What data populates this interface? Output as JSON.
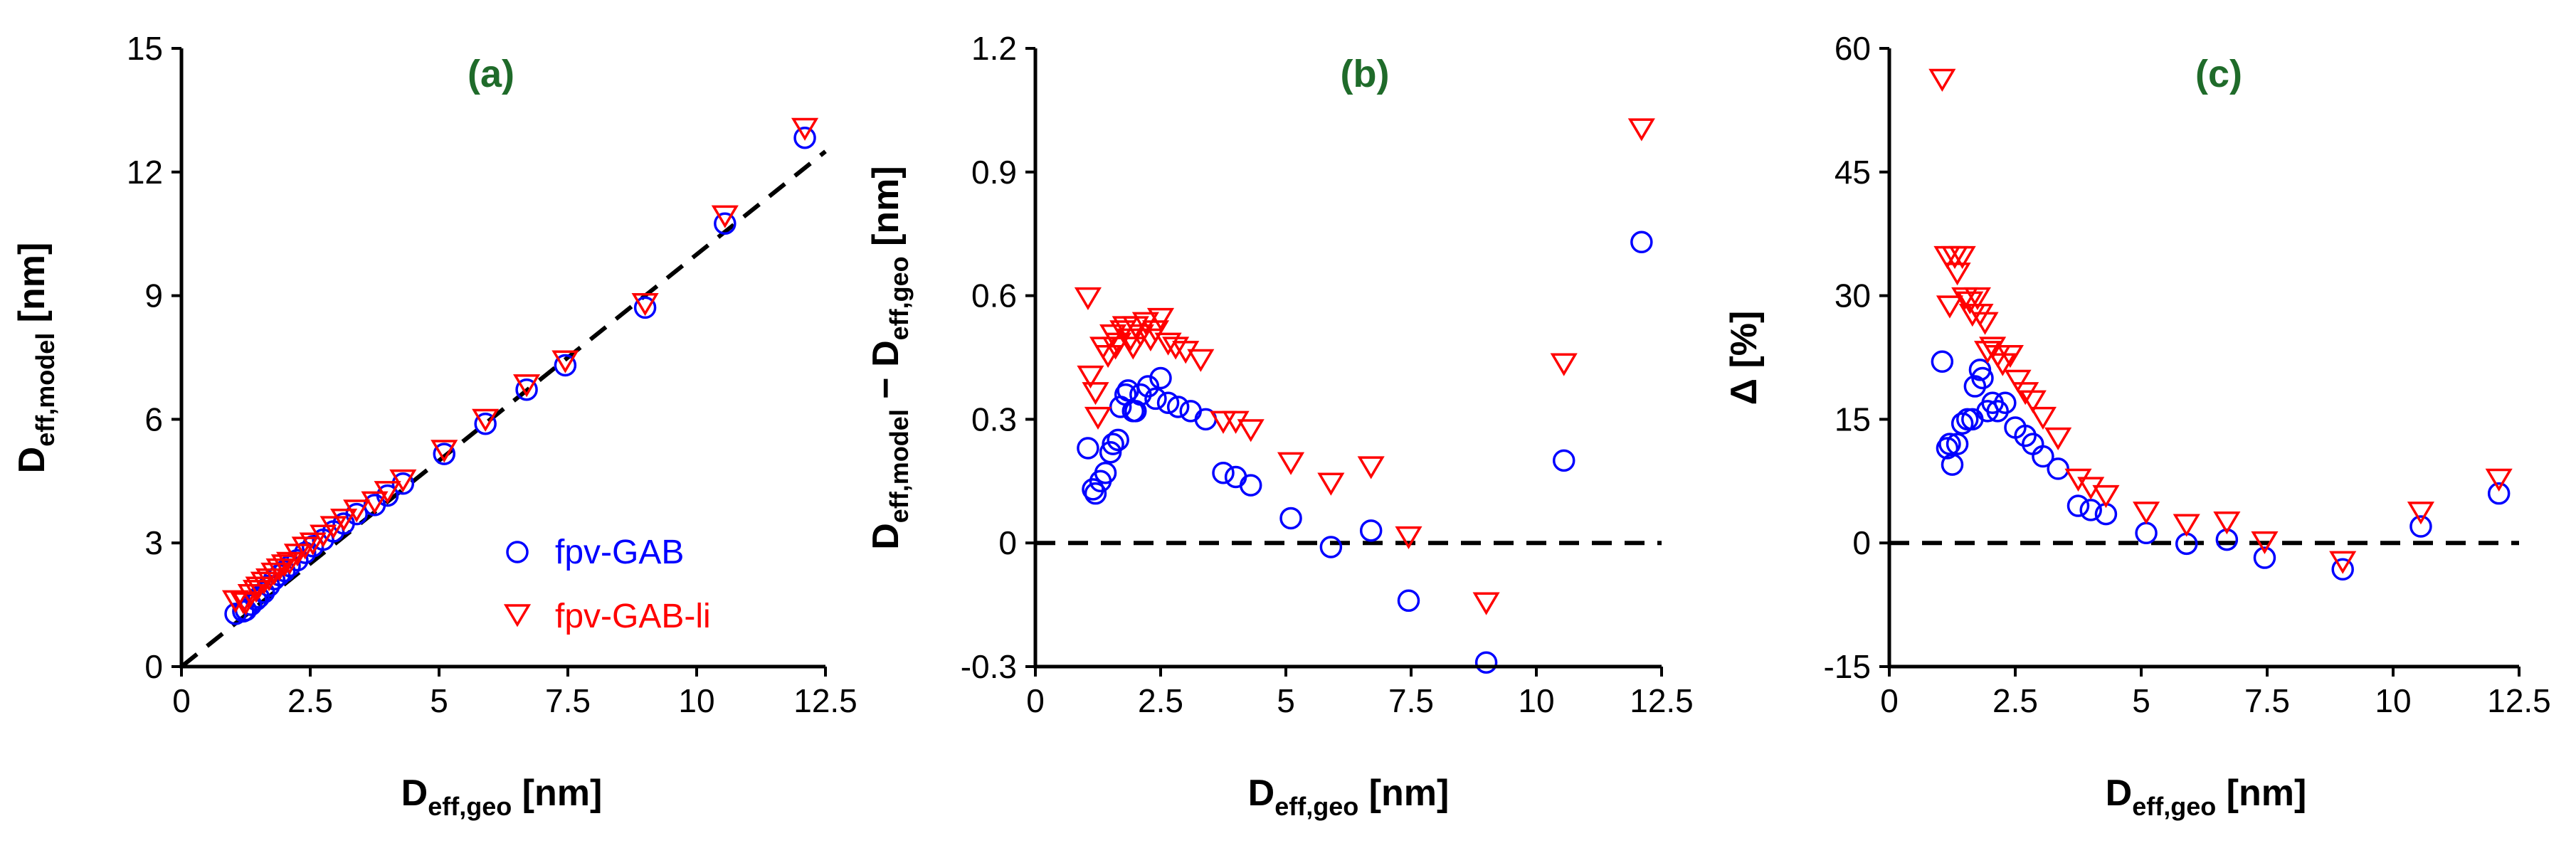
{
  "colors": {
    "gab": "#0000ff",
    "gab_li": "#ff0000",
    "panel_letter": "#1f6b2a"
  },
  "legend": {
    "gab": "fpv-GAB",
    "gab_li": "fpv-GAB-li"
  },
  "chart_data": [
    {
      "type": "scatter",
      "panel": "(a)",
      "xlabel": {
        "main": "D",
        "sub": "eff,geo",
        "unit": " [nm]"
      },
      "ylabel": {
        "main": "D",
        "sub": "eff,model",
        "unit": " [nm]"
      },
      "xlim": [
        0,
        12.5
      ],
      "ylim": [
        0,
        15
      ],
      "xticks": [
        "0",
        "2.5",
        "5",
        "7.5",
        "10",
        "12.5"
      ],
      "yticks": [
        "0",
        "3",
        "6",
        "9",
        "12",
        "15"
      ],
      "xtick_values": [
        0,
        2.5,
        5,
        7.5,
        10,
        12.5
      ],
      "ytick_values": [
        0,
        3,
        6,
        9,
        12,
        15
      ],
      "reference_line": {
        "type": "y=x",
        "style": "dashed"
      },
      "series": [
        {
          "name": "fpv-GAB",
          "marker": "circle",
          "x": [
            1.05,
            1.2,
            1.25,
            1.35,
            1.45,
            1.5,
            1.6,
            1.7,
            1.8,
            1.9,
            2.0,
            2.1,
            2.25,
            2.4,
            2.55,
            2.75,
            2.95,
            3.15,
            3.4,
            3.75,
            4.0,
            4.3,
            5.1,
            5.9,
            6.7,
            7.45,
            9.0,
            10.55,
            12.1
          ],
          "y": [
            1.28,
            1.34,
            1.37,
            1.5,
            1.62,
            1.68,
            1.8,
            1.96,
            2.12,
            2.22,
            2.32,
            2.44,
            2.58,
            2.76,
            2.92,
            3.08,
            3.28,
            3.47,
            3.7,
            3.92,
            4.15,
            4.44,
            5.16,
            5.89,
            6.72,
            7.31,
            8.71,
            10.75,
            12.83
          ]
        },
        {
          "name": "fpv-GAB-li",
          "marker": "triangle-down",
          "x": [
            1.05,
            1.2,
            1.25,
            1.35,
            1.45,
            1.5,
            1.6,
            1.7,
            1.8,
            1.9,
            2.0,
            2.1,
            2.25,
            2.4,
            2.55,
            2.75,
            2.95,
            3.15,
            3.4,
            3.75,
            4.0,
            4.3,
            5.1,
            5.9,
            6.7,
            7.45,
            9.0,
            10.55,
            12.1
          ],
          "y": [
            1.65,
            1.62,
            1.6,
            1.8,
            1.9,
            1.98,
            2.1,
            2.18,
            2.32,
            2.42,
            2.52,
            2.58,
            2.78,
            2.95,
            3.05,
            3.24,
            3.45,
            3.63,
            3.85,
            4.05,
            4.3,
            4.58,
            5.3,
            6.05,
            6.89,
            7.47,
            8.86,
            10.99,
            13.11
          ]
        }
      ]
    },
    {
      "type": "scatter",
      "panel": "(b)",
      "xlabel": {
        "main": "D",
        "sub": "eff,geo",
        "unit": " [nm]"
      },
      "ylabel": {
        "main": "D",
        "sub": "eff,model",
        "minus": " − D",
        "sub2": "eff,geo",
        "unit": " [nm]"
      },
      "xlim": [
        0,
        12.5
      ],
      "ylim": [
        -0.3,
        1.2
      ],
      "xticks": [
        "0",
        "2.5",
        "5",
        "7.5",
        "10",
        "12.5"
      ],
      "yticks": [
        "-0.3",
        "0",
        "0.3",
        "0.6",
        "0.9",
        "1.2"
      ],
      "xtick_values": [
        0,
        2.5,
        5,
        7.5,
        10,
        12.5
      ],
      "ytick_values": [
        -0.3,
        0,
        0.3,
        0.6,
        0.9,
        1.2
      ],
      "reference_line": {
        "type": "y=0",
        "style": "dashed"
      },
      "series": [
        {
          "name": "fpv-GAB",
          "marker": "circle",
          "x": [
            1.05,
            1.15,
            1.2,
            1.3,
            1.4,
            1.5,
            1.55,
            1.65,
            1.7,
            1.8,
            1.85,
            1.95,
            2.0,
            2.1,
            2.25,
            2.4,
            2.5,
            2.65,
            2.85,
            3.1,
            3.4,
            3.75,
            4.0,
            4.3,
            5.1,
            5.9,
            6.7,
            7.45,
            9.0,
            10.55,
            12.1
          ],
          "y": [
            0.23,
            0.13,
            0.12,
            0.15,
            0.17,
            0.22,
            0.24,
            0.25,
            0.33,
            0.36,
            0.37,
            0.32,
            0.32,
            0.36,
            0.38,
            0.35,
            0.4,
            0.34,
            0.33,
            0.32,
            0.3,
            0.17,
            0.16,
            0.14,
            0.06,
            -0.01,
            0.03,
            -0.14,
            -0.29,
            0.2,
            0.73
          ]
        },
        {
          "name": "fpv-GAB-li",
          "marker": "triangle-down",
          "x": [
            1.05,
            1.1,
            1.2,
            1.25,
            1.35,
            1.45,
            1.55,
            1.6,
            1.65,
            1.75,
            1.8,
            1.9,
            1.95,
            2.0,
            2.1,
            2.2,
            2.3,
            2.4,
            2.5,
            2.65,
            2.8,
            3.0,
            3.3,
            3.75,
            4.0,
            4.3,
            5.1,
            5.9,
            6.7,
            7.45,
            9.0,
            10.55,
            12.1
          ],
          "y": [
            0.6,
            0.41,
            0.37,
            0.31,
            0.48,
            0.46,
            0.51,
            0.48,
            0.49,
            0.52,
            0.53,
            0.5,
            0.48,
            0.53,
            0.51,
            0.54,
            0.5,
            0.52,
            0.55,
            0.49,
            0.48,
            0.47,
            0.45,
            0.3,
            0.3,
            0.28,
            0.2,
            0.15,
            0.19,
            0.02,
            -0.14,
            0.44,
            1.01
          ]
        }
      ]
    },
    {
      "type": "scatter",
      "panel": "(c)",
      "xlabel": {
        "main": "D",
        "sub": "eff,geo",
        "unit": " [nm]"
      },
      "ylabel": {
        "main": "Δ [%]"
      },
      "xlim": [
        0,
        12.5
      ],
      "ylim": [
        -15,
        60
      ],
      "xticks": [
        "0",
        "2.5",
        "5",
        "7.5",
        "10",
        "12.5"
      ],
      "yticks": [
        "-15",
        "0",
        "15",
        "30",
        "45",
        "60"
      ],
      "xtick_values": [
        0,
        2.5,
        5,
        7.5,
        10,
        12.5
      ],
      "ytick_values": [
        -15,
        0,
        15,
        30,
        45,
        60
      ],
      "reference_line": {
        "type": "y=0",
        "style": "dashed"
      },
      "series": [
        {
          "name": "fpv-GAB",
          "marker": "circle",
          "x": [
            1.05,
            1.15,
            1.2,
            1.25,
            1.35,
            1.45,
            1.55,
            1.65,
            1.7,
            1.8,
            1.85,
            1.95,
            2.05,
            2.15,
            2.3,
            2.5,
            2.7,
            2.85,
            3.05,
            3.35,
            3.75,
            4.0,
            4.3,
            5.1,
            5.9,
            6.7,
            7.45,
            9.0,
            10.55,
            12.1
          ],
          "y": [
            22,
            11.5,
            12,
            9.5,
            12,
            14.5,
            15,
            15,
            19,
            21,
            20,
            16,
            17,
            16,
            17,
            14,
            13,
            12,
            10.5,
            9,
            4.5,
            4,
            3.5,
            1.2,
            -0.1,
            0.4,
            -1.8,
            -3.2,
            2,
            6
          ]
        },
        {
          "name": "fpv-GAB-li",
          "marker": "triangle-down",
          "x": [
            1.05,
            1.15,
            1.2,
            1.3,
            1.35,
            1.45,
            1.5,
            1.6,
            1.65,
            1.75,
            1.8,
            1.9,
            1.95,
            2.05,
            2.15,
            2.25,
            2.4,
            2.55,
            2.7,
            2.85,
            3.05,
            3.35,
            3.75,
            4.0,
            4.3,
            5.1,
            5.9,
            6.7,
            7.45,
            9.0,
            10.55,
            12.1
          ],
          "y": [
            56.5,
            35,
            29,
            35,
            33,
            35,
            30,
            29.5,
            28,
            30,
            28,
            27,
            23.5,
            24,
            23,
            22,
            23,
            20,
            18.5,
            17.5,
            15.5,
            13,
            8,
            7,
            6,
            4,
            2.5,
            2.8,
            0.4,
            -2,
            4,
            8
          ]
        }
      ]
    }
  ]
}
